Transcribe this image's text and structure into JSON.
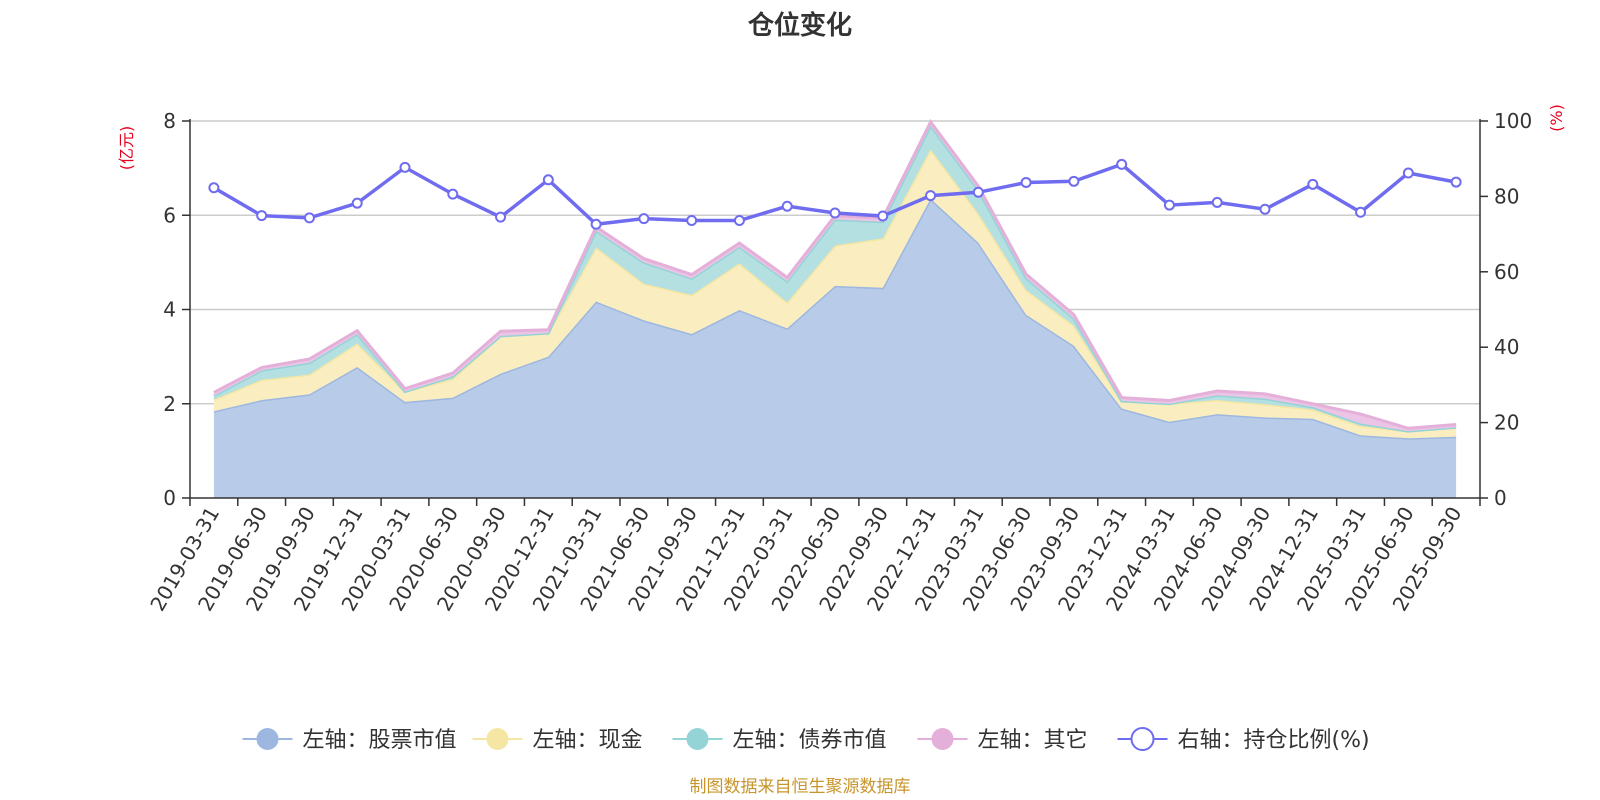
{
  "chart_data": {
    "type": "area",
    "title": "仓位变化",
    "left_axis_unit": "(亿元)",
    "right_axis_unit": "(%)",
    "left_ylim": [
      0,
      8
    ],
    "left_ticks": [
      "0",
      "2",
      "4",
      "6",
      "8"
    ],
    "right_ylim": [
      0,
      100
    ],
    "right_ticks": [
      "0",
      "20",
      "40",
      "60",
      "80",
      "100"
    ],
    "categories": [
      "2019-03-31",
      "2019-06-30",
      "2019-09-30",
      "2019-12-31",
      "2020-03-31",
      "2020-06-30",
      "2020-09-30",
      "2020-12-31",
      "2021-03-31",
      "2021-06-30",
      "2021-09-30",
      "2021-12-31",
      "2022-03-31",
      "2022-06-30",
      "2022-09-30",
      "2022-12-31",
      "2023-03-31",
      "2023-06-30",
      "2023-09-30",
      "2023-12-31",
      "2024-03-31",
      "2024-06-30",
      "2024-09-30",
      "2024-12-31",
      "2025-03-31",
      "2025-06-30",
      "2025-09-30"
    ],
    "series": [
      {
        "name": "左轴：股票市值",
        "axis": "left",
        "color": "#9db7e0",
        "fill": "#b8cce9",
        "values": [
          1.84,
          2.08,
          2.2,
          2.78,
          2.04,
          2.13,
          2.64,
          3.0,
          4.17,
          3.77,
          3.48,
          3.99,
          3.6,
          4.5,
          4.46,
          6.35,
          5.42,
          3.89,
          3.23,
          1.9,
          1.62,
          1.78,
          1.71,
          1.68,
          1.33,
          1.27,
          1.3
        ]
      },
      {
        "name": "左轴：现金",
        "axis": "left",
        "color": "#f5e6a3",
        "fill": "#faeec0",
        "values": [
          0.25,
          0.43,
          0.42,
          0.5,
          0.22,
          0.4,
          0.8,
          0.5,
          1.15,
          0.78,
          0.83,
          0.99,
          0.55,
          0.86,
          1.05,
          1.05,
          0.62,
          0.53,
          0.43,
          0.16,
          0.38,
          0.3,
          0.28,
          0.2,
          0.2,
          0.15,
          0.2
        ]
      },
      {
        "name": "左轴：债券市值",
        "axis": "left",
        "color": "#94d3d6",
        "fill": "#b4e0e2",
        "values": [
          0.08,
          0.2,
          0.25,
          0.2,
          0.0,
          0.05,
          0.0,
          0.0,
          0.35,
          0.45,
          0.35,
          0.35,
          0.45,
          0.55,
          0.35,
          0.5,
          0.5,
          0.25,
          0.15,
          0.0,
          0.0,
          0.1,
          0.12,
          0.05,
          0.05,
          0.0,
          0.0
        ]
      },
      {
        "name": "左轴：其它",
        "axis": "left",
        "color": "#e4b0da",
        "fill": "#ecc5e6",
        "values": [
          0.07,
          0.06,
          0.08,
          0.07,
          0.06,
          0.07,
          0.1,
          0.07,
          0.08,
          0.08,
          0.08,
          0.08,
          0.08,
          0.08,
          0.08,
          0.08,
          0.08,
          0.08,
          0.08,
          0.07,
          0.07,
          0.09,
          0.1,
          0.07,
          0.2,
          0.06,
          0.06
        ]
      },
      {
        "name": "右轴：持仓比例(%)",
        "axis": "right",
        "color": "#6f6cf0",
        "values": [
          82.3,
          74.9,
          74.3,
          78.2,
          87.7,
          80.6,
          74.5,
          84.4,
          72.6,
          74.1,
          73.6,
          73.6,
          77.4,
          75.6,
          74.8,
          80.2,
          81.1,
          83.7,
          84.0,
          88.5,
          77.7,
          78.4,
          76.6,
          83.2,
          75.8,
          86.2,
          83.8
        ]
      }
    ],
    "legend_position": "bottom",
    "grid": true
  },
  "source_note": "制图数据来自恒生聚源数据库"
}
